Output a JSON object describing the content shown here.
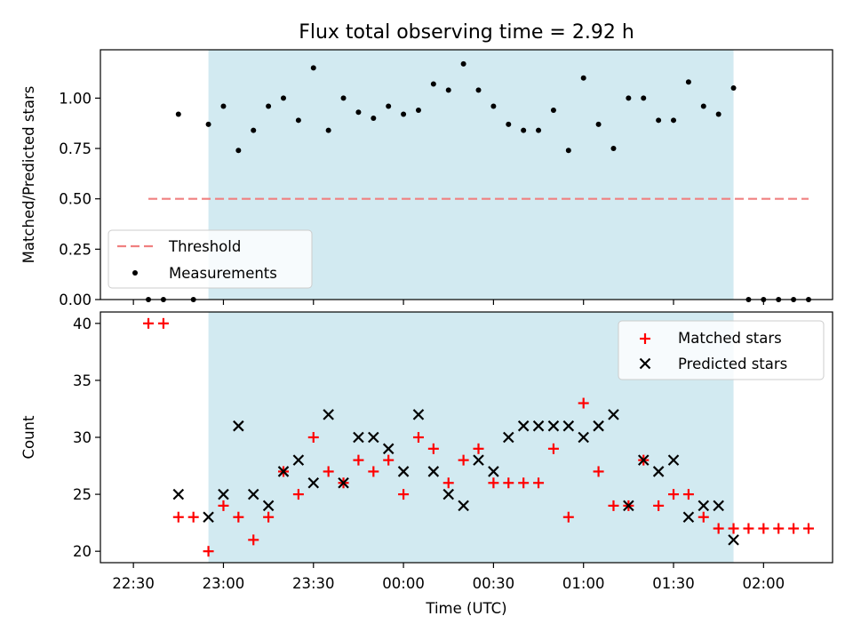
{
  "title": "Flux total observing time = 2.92 h",
  "colors": {
    "shade": "#add8e6",
    "threshold": "#f08080",
    "measurements": "#000000",
    "matched": "#ff0000",
    "predicted": "#000000"
  },
  "x_ticks": [
    "22:30",
    "23:00",
    "23:30",
    "00:00",
    "00:30",
    "01:00",
    "01:30",
    "02:00"
  ],
  "chart_data": [
    {
      "type": "scatter",
      "ylabel": "Matched/Predicted stars",
      "xlabel": "",
      "ylim": [
        0,
        1.24
      ],
      "yticks": [
        "0.00",
        "0.25",
        "0.50",
        "0.75",
        "1.00"
      ],
      "shaded_range": [
        "22:55",
        "01:50"
      ],
      "threshold": {
        "name": "Threshold",
        "value": 0.5,
        "x": [
          "22:35",
          "02:15"
        ],
        "style": "dashed"
      },
      "series": [
        {
          "name": "Measurements",
          "x": [
            "22:35",
            "22:40",
            "22:45",
            "22:50",
            "22:55",
            "23:00",
            "23:05",
            "23:10",
            "23:15",
            "23:20",
            "23:25",
            "23:30",
            "23:35",
            "23:40",
            "23:45",
            "23:50",
            "23:55",
            "00:00",
            "00:05",
            "00:10",
            "00:15",
            "00:20",
            "00:25",
            "00:30",
            "00:35",
            "00:40",
            "00:45",
            "00:50",
            "00:55",
            "01:00",
            "01:05",
            "01:10",
            "01:15",
            "01:20",
            "01:25",
            "01:30",
            "01:35",
            "01:40",
            "01:45",
            "01:50",
            "01:55",
            "02:00",
            "02:05",
            "02:10",
            "02:15"
          ],
          "y": [
            0,
            0,
            0.92,
            0,
            0.87,
            0.96,
            0.74,
            0.84,
            0.96,
            1.0,
            0.89,
            1.15,
            0.84,
            1.0,
            0.93,
            0.9,
            0.96,
            0.92,
            0.94,
            1.07,
            1.04,
            1.17,
            1.04,
            0.96,
            0.87,
            0.84,
            0.84,
            0.94,
            0.74,
            1.1,
            0.87,
            0.75,
            1.0,
            1.0,
            0.89,
            0.89,
            1.08,
            0.96,
            0.92,
            1.05,
            0,
            0,
            0,
            0,
            0
          ]
        }
      ],
      "legend": {
        "position": "lower-left",
        "entries": [
          "Threshold",
          "Measurements"
        ]
      }
    },
    {
      "type": "scatter",
      "ylabel": "Count",
      "xlabel": "Time (UTC)",
      "ylim": [
        19,
        41
      ],
      "yticks": [
        "20",
        "25",
        "30",
        "35",
        "40"
      ],
      "shaded_range": [
        "22:55",
        "01:50"
      ],
      "series": [
        {
          "name": "Matched stars",
          "marker": "+",
          "x": [
            "22:35",
            "22:40",
            "22:45",
            "22:50",
            "22:55",
            "23:00",
            "23:05",
            "23:10",
            "23:15",
            "23:20",
            "23:25",
            "23:30",
            "23:35",
            "23:40",
            "23:45",
            "23:50",
            "23:55",
            "00:00",
            "00:05",
            "00:10",
            "00:15",
            "00:20",
            "00:25",
            "00:30",
            "00:35",
            "00:40",
            "00:45",
            "00:50",
            "00:55",
            "01:00",
            "01:05",
            "01:10",
            "01:15",
            "01:20",
            "01:25",
            "01:30",
            "01:35",
            "01:40",
            "01:45",
            "01:50",
            "01:55",
            "02:00",
            "02:05",
            "02:10",
            "02:15"
          ],
          "y": [
            40,
            40,
            23,
            23,
            20,
            24,
            23,
            21,
            23,
            27,
            25,
            30,
            27,
            26,
            28,
            27,
            28,
            25,
            30,
            29,
            26,
            28,
            29,
            26,
            26,
            26,
            26,
            29,
            23,
            33,
            27,
            24,
            24,
            28,
            24,
            25,
            25,
            23,
            22,
            22,
            22,
            22,
            22,
            22,
            22
          ]
        },
        {
          "name": "Predicted stars",
          "marker": "x",
          "x": [
            "22:45",
            "22:55",
            "23:00",
            "23:05",
            "23:10",
            "23:15",
            "23:20",
            "23:25",
            "23:30",
            "23:35",
            "23:40",
            "23:45",
            "23:50",
            "23:55",
            "00:00",
            "00:05",
            "00:10",
            "00:15",
            "00:20",
            "00:25",
            "00:30",
            "00:35",
            "00:40",
            "00:45",
            "00:50",
            "00:55",
            "01:00",
            "01:05",
            "01:10",
            "01:15",
            "01:20",
            "01:25",
            "01:30",
            "01:35",
            "01:40",
            "01:45",
            "01:50"
          ],
          "y": [
            25,
            23,
            25,
            31,
            25,
            24,
            27,
            28,
            26,
            32,
            26,
            30,
            30,
            29,
            27,
            32,
            27,
            25,
            24,
            28,
            27,
            30,
            31,
            31,
            31,
            31,
            30,
            31,
            32,
            24,
            28,
            27,
            28,
            23,
            24,
            24,
            21
          ]
        }
      ],
      "legend": {
        "position": "upper-right",
        "entries": [
          "Matched stars",
          "Predicted stars"
        ]
      }
    }
  ]
}
